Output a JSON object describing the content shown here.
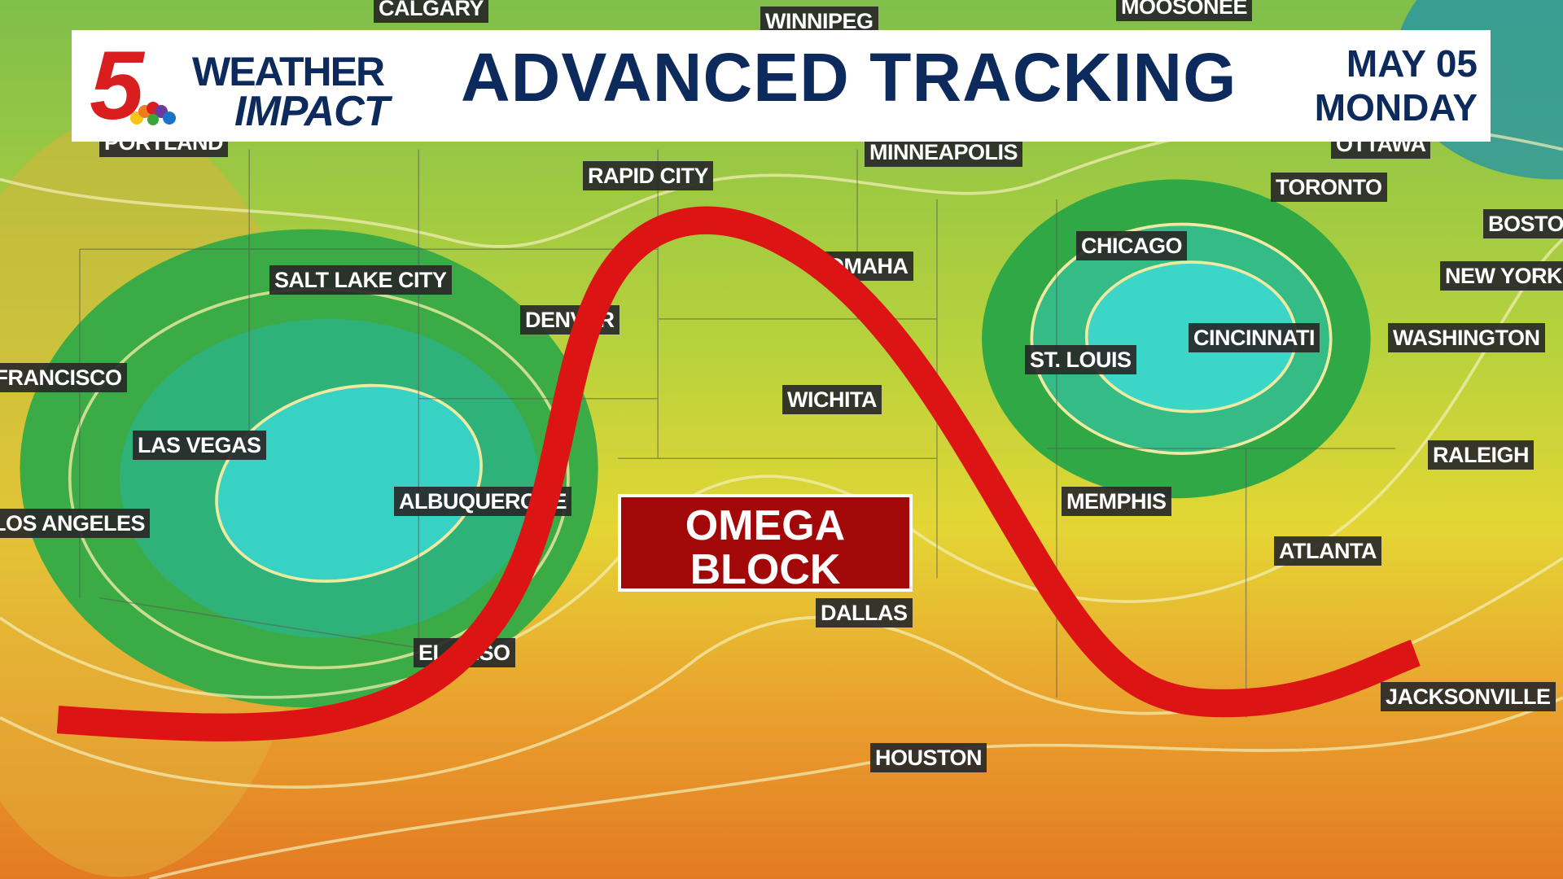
{
  "header": {
    "logo": "5",
    "brand_top": "WEATHER",
    "brand_bottom": "IMPACT",
    "title": "ADVANCED TRACKING",
    "date": "MAY 05",
    "day": "MONDAY"
  },
  "annotation": {
    "line1": "OMEGA",
    "line2": "BLOCK"
  },
  "cities": [
    "CALGARY",
    "WINNIPEG",
    "MOOSONEE",
    "PORTLAND",
    "OTTAWA",
    "RAPID CITY",
    "MINNEAPOLIS",
    "TORONTO",
    "BOSTON",
    "CHICAGO",
    "NEW YORK",
    "SALT LAKE CITY",
    "OMAHA",
    "DENVER",
    "WASHINGTON",
    "CINCINNATI",
    "SAN FRANCISCO",
    "ST. LOUIS",
    "WICHITA",
    "LAS VEGAS",
    "RALEIGH",
    "ALBUQUERQUE",
    "MEMPHIS",
    "LOS ANGELES",
    "ATLANTA",
    "DALLAS",
    "EL PASO",
    "JACKSONVILLE",
    "HOUSTON"
  ]
}
